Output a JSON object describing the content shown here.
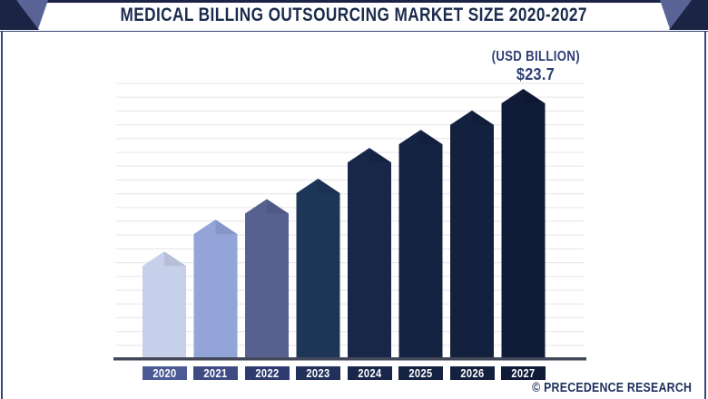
{
  "title": "MEDICAL BILLING OUTSOURCING MARKET SIZE 2020-2027",
  "annotation": {
    "unit_label": "(USD BILLION)",
    "value_label": "$23.7"
  },
  "footer": {
    "credit": "© PRECEDENCE RESEARCH"
  },
  "colors": {
    "accent_dark": "#1b2444",
    "accent_light": "#5a6395",
    "frame_border": "#3a4577",
    "title_text": "#1b2b4d",
    "annotation_text": "#2c3e73",
    "footer_text": "#1e2f5e",
    "gridline": "#e9e9ee",
    "baseline": "#434859",
    "year_text": "#ffffff"
  },
  "chart_data": {
    "type": "bar",
    "title": "MEDICAL BILLING OUTSOURCING MARKET SIZE 2020-2027",
    "unit": "USD Billion",
    "categories": [
      "2020",
      "2021",
      "2022",
      "2023",
      "2024",
      "2025",
      "2026",
      "2027"
    ],
    "values": [
      9.4,
      12.2,
      14.0,
      15.8,
      18.5,
      20.1,
      21.8,
      23.7
    ],
    "labeled_value": {
      "category": "2027",
      "value": 23.7,
      "label": "$23.7"
    },
    "xlabel": "",
    "ylabel": "(USD BILLION)",
    "ylim": [
      0,
      24
    ],
    "grid": "horizontal",
    "legend": "none",
    "bar_colors": [
      "#c7d0eb",
      "#92a4d8",
      "#56618f",
      "#1d3658",
      "#172649",
      "#152343",
      "#13203e",
      "#101b38"
    ],
    "label_colors": [
      "#4c5a95",
      "#3f4c84",
      "#2f3b6f",
      "#213159",
      "#18264a",
      "#152343",
      "#13203e",
      "#101b38"
    ]
  }
}
